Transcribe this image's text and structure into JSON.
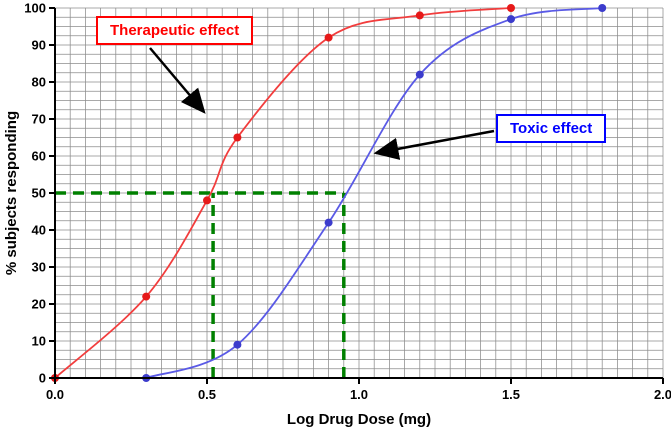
{
  "chart_data": {
    "type": "line",
    "title": "",
    "xlabel": "Log Drug Dose (mg)",
    "ylabel": "% subjects responding",
    "xlim": [
      0.0,
      2.0
    ],
    "ylim": [
      0,
      100
    ],
    "x_ticks": [
      0.0,
      0.5,
      1.0,
      1.5,
      2.0
    ],
    "x_tick_labels": [
      "0.0",
      "0.5",
      "1.0",
      "1.5",
      "2.0"
    ],
    "y_ticks": [
      0,
      10,
      20,
      30,
      40,
      50,
      60,
      70,
      80,
      90,
      100
    ],
    "grid": "fine graph-paper grid, minor x step 0.05, minor y step 2.5",
    "legend_position": "annotated boxes with arrows",
    "series": [
      {
        "name": "Therapeutic effect",
        "color": "#f23d3d",
        "marker_color": "#e61919",
        "points": [
          [
            0.0,
            0
          ],
          [
            0.3,
            22
          ],
          [
            0.5,
            48
          ],
          [
            0.6,
            65
          ],
          [
            0.9,
            92
          ],
          [
            1.2,
            98
          ],
          [
            1.5,
            100
          ]
        ]
      },
      {
        "name": "Toxic effect",
        "color": "#5a5ae6",
        "marker_color": "#3c3ccc",
        "points": [
          [
            0.3,
            0
          ],
          [
            0.6,
            9
          ],
          [
            0.9,
            42
          ],
          [
            1.2,
            82
          ],
          [
            1.5,
            97
          ],
          [
            1.8,
            100
          ]
        ]
      }
    ],
    "reference_lines": {
      "color": "#008000",
      "style": "thick dashed",
      "horizontal": {
        "y": 50,
        "x_from": 0.0,
        "x_to": 0.95
      },
      "verticals": [
        {
          "x": 0.52,
          "y_from": 0,
          "y_to": 50
        },
        {
          "x": 0.95,
          "y_from": 0,
          "y_to": 50
        }
      ]
    },
    "annotations": [
      {
        "label": "Therapeutic effect",
        "color": "#ff0000"
      },
      {
        "label": "Toxic effect",
        "color": "#0000ff"
      }
    ]
  }
}
